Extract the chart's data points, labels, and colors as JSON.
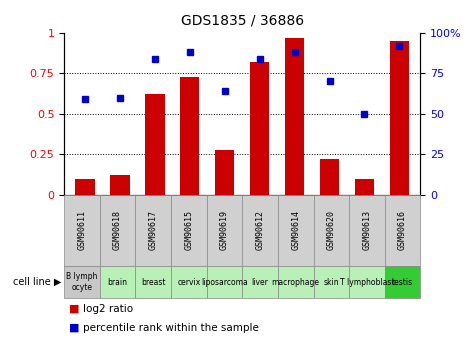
{
  "title": "GDS1835 / 36886",
  "samples": [
    "GSM90611",
    "GSM90618",
    "GSM90617",
    "GSM90615",
    "GSM90619",
    "GSM90612",
    "GSM90614",
    "GSM90620",
    "GSM90613",
    "GSM90616"
  ],
  "cell_lines": [
    "B lymph\nocyte",
    "brain",
    "breast",
    "cervix",
    "liposarcoma",
    "liver",
    "macrophage",
    "skin",
    "T lymphoblast",
    "testis"
  ],
  "cell_line_colors": [
    "#c8c8c8",
    "#b8f0b8",
    "#b8f0b8",
    "#b8f0b8",
    "#b8f0b8",
    "#b8f0b8",
    "#b8f0b8",
    "#b8f0b8",
    "#b8f0b8",
    "#33cc33"
  ],
  "gsm_row_color": "#d0d0d0",
  "log2_ratio": [
    0.1,
    0.12,
    0.62,
    0.73,
    0.28,
    0.82,
    0.97,
    0.22,
    0.1,
    0.95
  ],
  "percentile_rank": [
    0.59,
    0.6,
    0.84,
    0.88,
    0.64,
    0.84,
    0.88,
    0.7,
    0.5,
    0.92
  ],
  "bar_color": "#cc0000",
  "dot_color": "#0000cc",
  "yticks_left": [
    0,
    0.25,
    0.5,
    0.75,
    1.0
  ],
  "ytick_labels_left": [
    "0",
    "0.25",
    "0.5",
    "0.75",
    "1"
  ],
  "yticks_right": [
    0,
    25,
    50,
    75,
    100
  ],
  "ytick_labels_right": [
    "0",
    "25",
    "50",
    "75",
    "100%"
  ],
  "legend_red": "log2 ratio",
  "legend_blue": "percentile rank within the sample",
  "cell_line_label": "cell line"
}
